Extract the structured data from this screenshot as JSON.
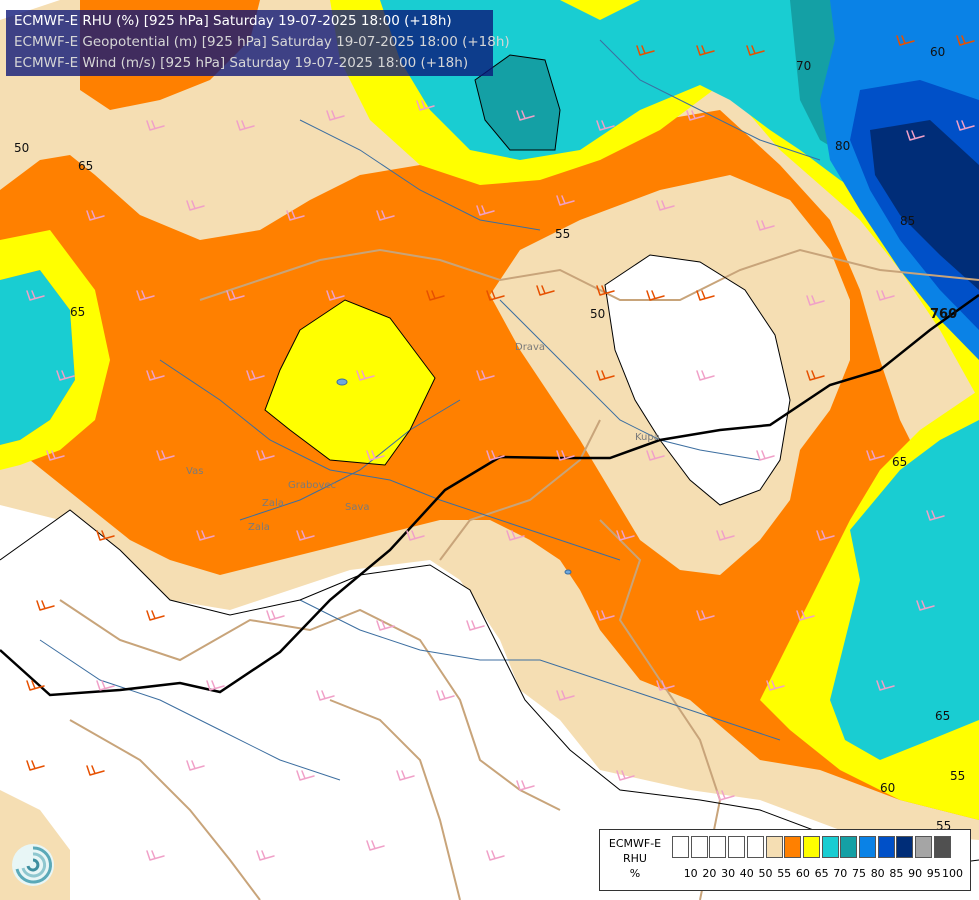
{
  "header": {
    "line1": "ECMWF-E RHU (%) [925 hPa] Saturday 19-07-2025 18:00 (+18h)",
    "line2": "ECMWF-E Geopotential (m) [925 hPa] Saturday 19-07-2025 18:00 (+18h)",
    "line3": "ECMWF-E Wind (m/s) [925 hPa] Saturday 19-07-2025 18:00 (+18h)"
  },
  "legend": {
    "title_lines": [
      "ECMWF-E",
      "RHU",
      "%"
    ],
    "labels": [
      "10",
      "20",
      "30",
      "40",
      "50",
      "55",
      "60",
      "65",
      "70",
      "75",
      "80",
      "85",
      "90",
      "95",
      "100"
    ],
    "colors": [
      "#ffffff",
      "#ffffff",
      "#ffffff",
      "#ffffff",
      "#ffffff",
      "#f5deb3",
      "#ff8000",
      "#ffff00",
      "#19cdd2",
      "#14a0a5",
      "#0a82e6",
      "#0050c8",
      "#002d78",
      "#a5a5a5",
      "#505050"
    ]
  },
  "contour_labels": {
    "rhu": [
      "50",
      "65",
      "65",
      "55",
      "50",
      "65",
      "65",
      "60",
      "55",
      "55",
      "70",
      "80",
      "85",
      "60"
    ],
    "geopotential": [
      "760"
    ]
  },
  "river_labels": [
    "Vas",
    "Zala",
    "Zala",
    "Grabovec",
    "Sava",
    "Drava",
    "Kupa"
  ],
  "map_colors": {
    "white": "#ffffff",
    "wheat": "#f5deb3",
    "orange": "#ff8000",
    "yellow": "#ffff00",
    "cyan": "#19cdd2",
    "teal": "#14a0a5",
    "blue": "#0a82e6",
    "dark_blue": "#0050c8",
    "navy": "#002d78",
    "barb_pink": "#f0a0c8",
    "barb_orange": "#e65000",
    "border": "#c8a47a",
    "river": "#3c6ea0"
  }
}
